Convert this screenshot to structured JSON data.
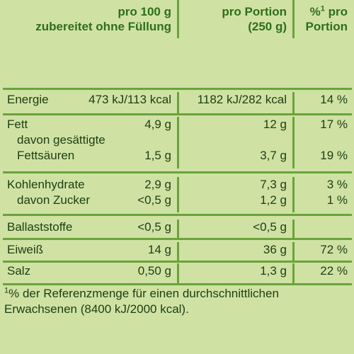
{
  "header": {
    "col1": [
      "pro 100 g",
      "zubereitet ohne Füllung"
    ],
    "col2": [
      "pro Portion",
      "(250 g)"
    ],
    "col3_sup": "%",
    "col3_sup_mark": "1",
    "col3_a": " pro",
    "col3_b": "Portion"
  },
  "rows": {
    "energie": {
      "label": "Energie",
      "per100": "473 kJ/113 kcal",
      "portion": "1182 kJ/282 kcal",
      "pct": "14 %"
    },
    "fett": {
      "label": "Fett",
      "per100": "4,9 g",
      "portion": "12 g",
      "pct": "17 %"
    },
    "fett_sub1": {
      "label": "davon gesättigte"
    },
    "fett_sub2": {
      "label": "Fettsäuren",
      "per100": "1,5 g",
      "portion": "3,7 g",
      "pct": "19 %"
    },
    "kh": {
      "label": "Kohlenhydrate",
      "per100": "2,9 g",
      "portion": "7,3 g",
      "pct": "3 %"
    },
    "zucker": {
      "label": "davon Zucker",
      "per100": "<0,5 g",
      "portion": "1,2 g",
      "pct": "1 %"
    },
    "ballast": {
      "label": "Ballaststoffe",
      "per100": "<0,5 g",
      "portion": "<0,5 g",
      "pct": ""
    },
    "eiweiss": {
      "label": "Eiweiß",
      "per100": "14 g",
      "portion": "36 g",
      "pct": "72 %"
    },
    "salz": {
      "label": "Salz",
      "per100": "0,50 g",
      "portion": "1,3 g",
      "pct": "22 %"
    }
  },
  "footnote": {
    "mark": "1",
    "line1": "% der Referenzmenge für einen durchschnittlichen",
    "line2": "Erwachsenen (8400 kJ/2000 kcal)."
  }
}
